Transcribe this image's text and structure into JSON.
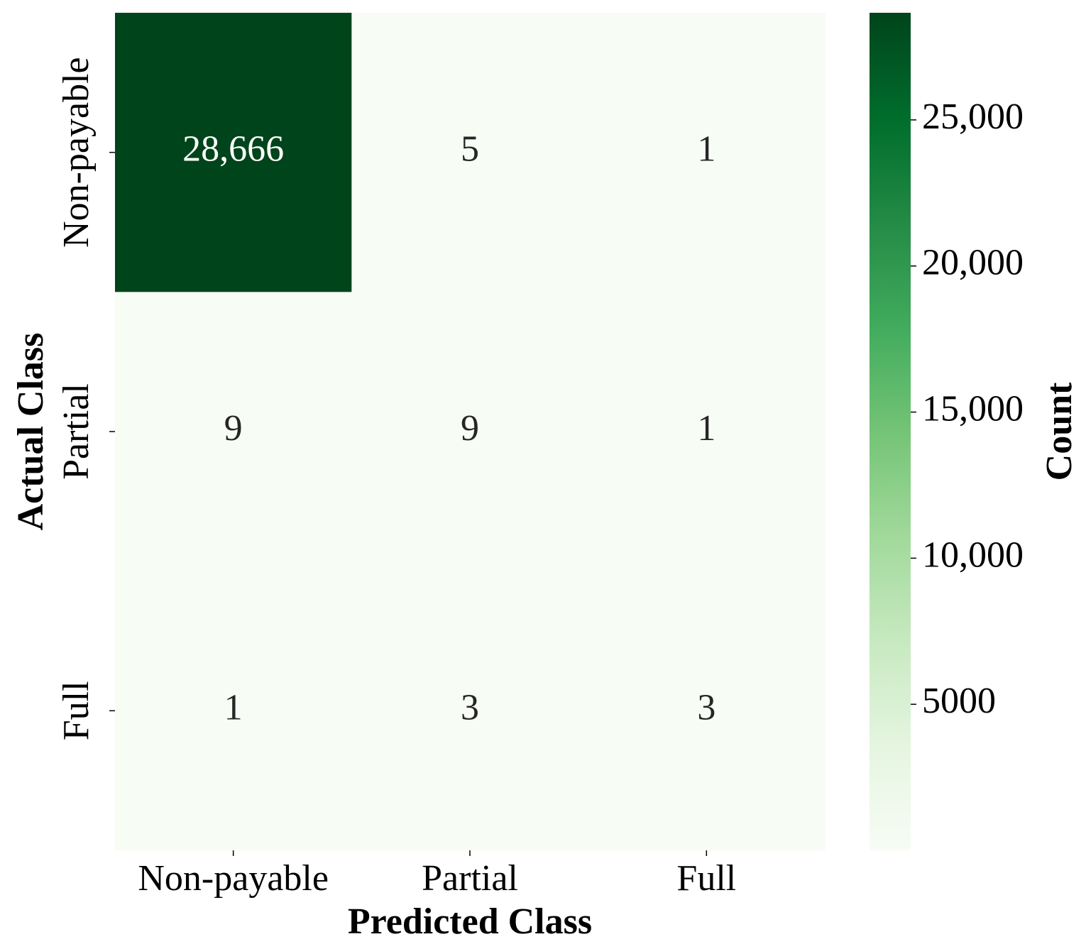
{
  "chart_data": {
    "type": "heatmap",
    "x_label": "Predicted Class",
    "y_label": "Actual Class",
    "x_categories": [
      "Non-payable",
      "Partial",
      "Full"
    ],
    "y_categories": [
      "Non-payable",
      "Partial",
      "Full"
    ],
    "values": [
      [
        28666,
        5,
        1
      ],
      [
        9,
        9,
        1
      ],
      [
        1,
        3,
        3
      ]
    ],
    "value_labels": [
      [
        "28,666",
        "5",
        "1"
      ],
      [
        "9",
        "9",
        "1"
      ],
      [
        "1",
        "3",
        "3"
      ]
    ],
    "colormap": [
      "#f7fcf5",
      "#e5f5e0",
      "#c7e9c0",
      "#a1d99b",
      "#74c476",
      "#41ab5d",
      "#238b45",
      "#006d2c",
      "#00441b"
    ],
    "colorbar_label": "Count",
    "clim": [
      1,
      28666
    ],
    "cticks": [
      5000,
      {
        "value": 10000,
        "label": "10,000"
      },
      {
        "value": 15000,
        "label": "15,000"
      },
      {
        "value": 20000,
        "label": "20,000"
      },
      {
        "value": 25000,
        "label": "25,000"
      }
    ]
  }
}
